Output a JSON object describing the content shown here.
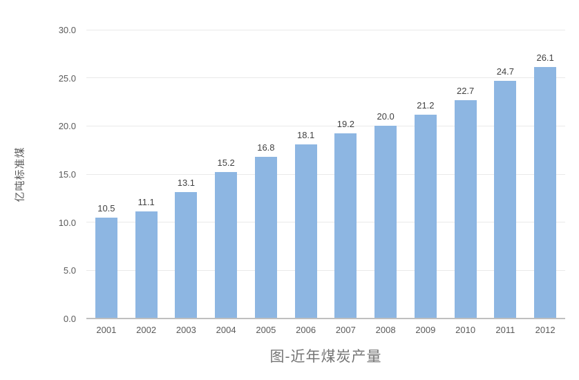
{
  "chart_data": {
    "type": "bar",
    "title": "图-近年煤炭产量",
    "ylabel": "亿吨标准煤",
    "categories": [
      "2001",
      "2002",
      "2003",
      "2004",
      "2005",
      "2006",
      "2007",
      "2008",
      "2009",
      "2010",
      "2011",
      "2012"
    ],
    "values": [
      10.5,
      11.1,
      13.1,
      15.2,
      16.8,
      18.1,
      19.2,
      20.0,
      21.2,
      22.7,
      24.7,
      26.1
    ],
    "value_labels": [
      "10.5",
      "11.1",
      "13.1",
      "15.2",
      "16.8",
      "18.1",
      "19.2",
      "20.0",
      "21.2",
      "22.7",
      "24.7",
      "26.1"
    ],
    "ylim": [
      0,
      30
    ],
    "ytick_step": 5,
    "ytick_labels": [
      "0.0",
      "5.0",
      "10.0",
      "15.0",
      "20.0",
      "25.0",
      "30.0"
    ],
    "grid": true,
    "legend": "none",
    "colors": {
      "bar": "#8DB6E2",
      "gridline": "#E9E9E9",
      "axis_line": "#BFBFBF",
      "tick_label": "#595959",
      "value_label": "#404040",
      "axis_title": "#595959",
      "chart_title": "#757575",
      "background": "#FFFFFF"
    }
  }
}
